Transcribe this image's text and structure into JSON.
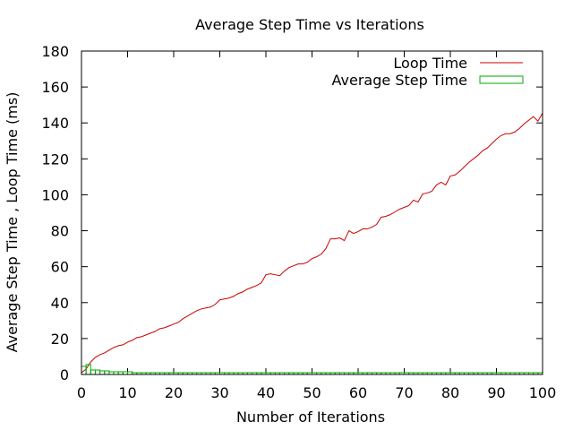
{
  "chart_data": {
    "type": "line",
    "title": "Average Step Time vs Iterations",
    "xlabel": "Number of Iterations",
    "ylabel": "Average Step Time , Loop Time  (ms)",
    "xlim": [
      0,
      100
    ],
    "ylim": [
      0,
      180
    ],
    "xticks": [
      0,
      10,
      20,
      30,
      40,
      50,
      60,
      70,
      80,
      90,
      100
    ],
    "yticks": [
      0,
      20,
      40,
      60,
      80,
      100,
      120,
      140,
      160,
      180
    ],
    "grid": false,
    "legend": "top-right",
    "x": [
      0,
      1,
      2,
      3,
      4,
      5,
      6,
      7,
      8,
      9,
      10,
      11,
      12,
      13,
      14,
      15,
      16,
      17,
      18,
      19,
      20,
      21,
      22,
      23,
      24,
      25,
      26,
      27,
      28,
      29,
      30,
      31,
      32,
      33,
      34,
      35,
      36,
      37,
      38,
      39,
      40,
      41,
      42,
      43,
      44,
      45,
      46,
      47,
      48,
      49,
      50,
      51,
      52,
      53,
      54,
      55,
      56,
      57,
      58,
      59,
      60,
      61,
      62,
      63,
      64,
      65,
      66,
      67,
      68,
      69,
      70,
      71,
      72,
      73,
      74,
      75,
      76,
      77,
      78,
      79,
      80,
      81,
      82,
      83,
      84,
      85,
      86,
      87,
      88,
      89,
      90,
      91,
      92,
      93,
      94,
      95,
      96,
      97,
      98,
      99,
      100
    ],
    "series": [
      {
        "name": "Loop Time",
        "color": "#cc0000",
        "style": "line",
        "values": [
          1,
          3,
          7,
          9.5,
          11,
          12,
          13.5,
          15,
          16,
          16.5,
          18,
          19,
          20.5,
          21,
          22,
          23,
          24,
          25.5,
          26,
          27,
          28,
          29,
          31,
          32.5,
          34,
          35.5,
          36.5,
          37,
          37.5,
          39,
          41.5,
          42,
          42.5,
          43.5,
          45,
          46,
          47.5,
          48.5,
          49.5,
          51,
          55.5,
          56,
          55.5,
          55,
          57.5,
          59.5,
          60.5,
          61.5,
          61.5,
          62.5,
          64.5,
          65.5,
          67,
          70,
          75.5,
          75.5,
          76,
          74.5,
          80,
          78.5,
          79.5,
          81,
          81,
          82,
          83.5,
          87.5,
          88,
          89,
          90.5,
          92,
          93,
          94,
          97,
          96,
          100.5,
          101,
          102,
          105.5,
          107,
          105.5,
          110.5,
          111,
          113,
          115.5,
          118,
          120,
          122,
          124.5,
          126,
          128.5,
          131,
          133,
          134,
          134,
          135,
          137,
          139.5,
          141.5,
          143.5,
          141,
          145.5
        ]
      },
      {
        "name": "Average Step Time",
        "color": "#00aa00",
        "style": "bars",
        "values": [
          4.5,
          5.5,
          2.5,
          2.5,
          2.0,
          2.0,
          1.5,
          1.5,
          1.5,
          1.5,
          1.5,
          1.0,
          1.0,
          1.0,
          1.0,
          1.0,
          1.0,
          1.0,
          1.0,
          1.0,
          1.0,
          1.0,
          1.0,
          1.0,
          1.0,
          1.0,
          1.0,
          1.0,
          1.0,
          1.0,
          1.0,
          1.0,
          1.0,
          1.0,
          1.0,
          1.0,
          1.0,
          1.0,
          1.0,
          1.0,
          1.0,
          1.0,
          1.0,
          1.0,
          1.0,
          1.0,
          1.0,
          1.0,
          1.0,
          1.0,
          1.0,
          1.0,
          1.0,
          1.0,
          1.0,
          1.0,
          1.0,
          1.0,
          1.0,
          1.0,
          1.0,
          1.0,
          1.0,
          1.0,
          1.0,
          1.0,
          1.0,
          1.0,
          1.0,
          1.0,
          1.0,
          1.0,
          1.0,
          1.0,
          1.0,
          1.0,
          1.0,
          1.0,
          1.0,
          1.0,
          1.0,
          1.0,
          1.0,
          1.0,
          1.0,
          1.0,
          1.0,
          1.0,
          1.0,
          1.0,
          1.0,
          1.0,
          1.0,
          1.0,
          1.0,
          1.0,
          1.0,
          1.0,
          1.0,
          1.0,
          1.0
        ]
      }
    ]
  }
}
